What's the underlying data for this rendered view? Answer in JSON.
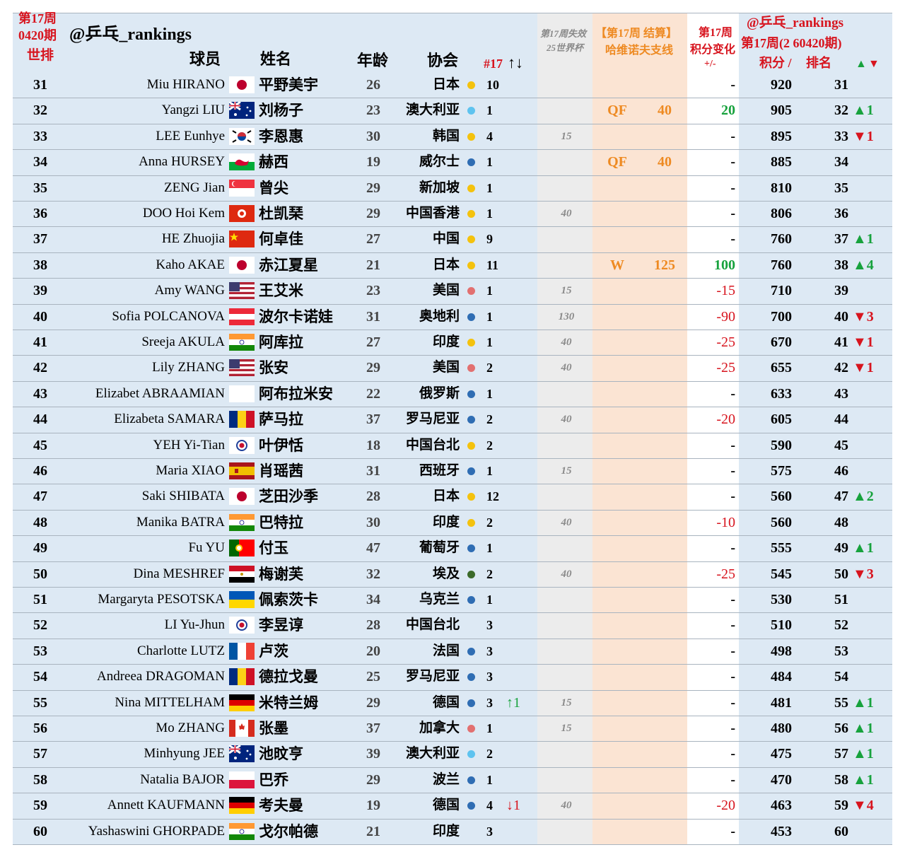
{
  "header": {
    "rank_title": [
      "第17周",
      "0420期",
      "世排"
    ],
    "brand": "@乒乓_rankings",
    "player": "球员",
    "name": "姓名",
    "age": "年龄",
    "assoc": "协会",
    "count": "#17",
    "count_arrows": "↑↓",
    "lost": [
      "第17周失效",
      "25世界杯"
    ],
    "result": [
      "【第17周 结算】",
      "哈维诺夫支线"
    ],
    "change": [
      "第17周",
      "积分变化",
      "+/-"
    ],
    "brand2": "@乒乓_rankings",
    "week": "第17周(2 60420期)",
    "points": "积分 /",
    "new_rank": "排名",
    "up": "▲",
    "down": "▼"
  },
  "colors": {
    "up": "#17a23d",
    "down": "#d7141e"
  },
  "rows": [
    {
      "rank": 31,
      "en": "Miu HIRANO",
      "cn": "平野美宇",
      "age": 26,
      "assoc": "日本",
      "dot": "#f4c20d",
      "count": 10,
      "change": "-",
      "points": 920,
      "new_rank": 31
    },
    {
      "rank": 32,
      "en": "Yangzi LIU",
      "cn": "刘杨子",
      "age": 23,
      "assoc": "澳大利亚",
      "dot": "#5ec3ef",
      "count": 1,
      "result": "QF",
      "result_pts": 40,
      "change": 20,
      "points": 905,
      "new_rank": 32,
      "rank_change": "▲1",
      "rank_change_color": "#17a23d"
    },
    {
      "rank": 33,
      "en": "LEE Eunhye",
      "cn": "李恩惠",
      "age": 30,
      "assoc": "韩国",
      "dot": "#f4c20d",
      "count": 4,
      "lost": 15,
      "change": "-",
      "points": 895,
      "new_rank": 33,
      "rank_change": "▼1",
      "rank_change_color": "#d7141e"
    },
    {
      "rank": 34,
      "en": "Anna HURSEY",
      "cn": "赫西",
      "age": 19,
      "assoc": "威尔士",
      "dot": "#2f6db3",
      "count": 1,
      "result": "QF",
      "result_pts": 40,
      "change": "-",
      "points": 885,
      "new_rank": 34
    },
    {
      "rank": 35,
      "en": "ZENG Jian",
      "cn": "曾尖",
      "age": 29,
      "assoc": "新加坡",
      "dot": "#f4c20d",
      "count": 1,
      "change": "-",
      "points": 810,
      "new_rank": 35
    },
    {
      "rank": 36,
      "en": "DOO Hoi Kem",
      "cn": "杜凯琹",
      "age": 29,
      "assoc": "中国香港",
      "dot": "#f4c20d",
      "count": 1,
      "lost": 40,
      "change": "-",
      "points": 806,
      "new_rank": 36
    },
    {
      "rank": 37,
      "en": "HE Zhuojia",
      "cn": "何卓佳",
      "age": 27,
      "assoc": "中国",
      "dot": "#f4c20d",
      "count": 9,
      "change": "-",
      "points": 760,
      "new_rank": 37,
      "rank_change": "▲1",
      "rank_change_color": "#17a23d"
    },
    {
      "rank": 38,
      "en": "Kaho AKAE",
      "cn": "赤江夏星",
      "age": 21,
      "assoc": "日本",
      "dot": "#f4c20d",
      "count": 11,
      "result": "W",
      "result_pts": 125,
      "change": 100,
      "points": 760,
      "new_rank": 38,
      "rank_change": "▲4",
      "rank_change_color": "#17a23d"
    },
    {
      "rank": 39,
      "en": "Amy WANG",
      "cn": "王艾米",
      "age": 23,
      "assoc": "美国",
      "dot": "#e27070",
      "count": 1,
      "lost": 15,
      "change": -15,
      "points": 710,
      "new_rank": 39
    },
    {
      "rank": 40,
      "en": "Sofia POLCANOVA",
      "cn": "波尔卡诺娃",
      "age": 31,
      "assoc": "奥地利",
      "dot": "#2f6db3",
      "count": 1,
      "lost": 130,
      "change": -90,
      "points": 700,
      "new_rank": 40,
      "rank_change": "▼3",
      "rank_change_color": "#d7141e"
    },
    {
      "rank": 41,
      "en": "Sreeja AKULA",
      "cn": "阿库拉",
      "age": 27,
      "assoc": "印度",
      "dot": "#f4c20d",
      "count": 1,
      "lost": 40,
      "change": -25,
      "points": 670,
      "new_rank": 41,
      "rank_change": "▼1",
      "rank_change_color": "#d7141e"
    },
    {
      "rank": 42,
      "en": "Lily ZHANG",
      "cn": "张安",
      "age": 29,
      "assoc": "美国",
      "dot": "#e27070",
      "count": 2,
      "lost": 40,
      "change": -25,
      "points": 655,
      "new_rank": 42,
      "rank_change": "▼1",
      "rank_change_color": "#d7141e"
    },
    {
      "rank": 43,
      "en": "Elizabet ABRAAMIAN",
      "cn": "阿布拉米安",
      "age": 22,
      "assoc": "俄罗斯",
      "dot": "#2f6db3",
      "count": 1,
      "change": "-",
      "points": 633,
      "new_rank": 43
    },
    {
      "rank": 44,
      "en": "Elizabeta SAMARA",
      "cn": "萨马拉",
      "age": 37,
      "assoc": "罗马尼亚",
      "dot": "#2f6db3",
      "count": 2,
      "lost": 40,
      "change": -20,
      "points": 605,
      "new_rank": 44
    },
    {
      "rank": 45,
      "en": "YEH Yi-Tian",
      "cn": "叶伊恬",
      "age": 18,
      "assoc": "中国台北",
      "dot": "#f4c20d",
      "count": 2,
      "change": "-",
      "points": 590,
      "new_rank": 45
    },
    {
      "rank": 46,
      "en": "Maria XIAO",
      "cn": "肖瑶茜",
      "age": 31,
      "assoc": "西班牙",
      "dot": "#2f6db3",
      "count": 1,
      "lost": 15,
      "change": "-",
      "points": 575,
      "new_rank": 46
    },
    {
      "rank": 47,
      "en": "Saki SHIBATA",
      "cn": "芝田沙季",
      "age": 28,
      "assoc": "日本",
      "dot": "#f4c20d",
      "count": 12,
      "change": "-",
      "points": 560,
      "new_rank": 47,
      "rank_change": "▲2",
      "rank_change_color": "#17a23d"
    },
    {
      "rank": 48,
      "en": "Manika BATRA",
      "cn": "巴特拉",
      "age": 30,
      "assoc": "印度",
      "dot": "#f4c20d",
      "count": 2,
      "lost": 40,
      "change": -10,
      "points": 560,
      "new_rank": 48
    },
    {
      "rank": 49,
      "en": "Fu YU",
      "cn": "付玉",
      "age": 47,
      "assoc": "葡萄牙",
      "dot": "#2f6db3",
      "count": 1,
      "change": "-",
      "points": 555,
      "new_rank": 49,
      "rank_change": "▲1",
      "rank_change_color": "#17a23d"
    },
    {
      "rank": 50,
      "en": "Dina MESHREF",
      "cn": "梅谢芙",
      "age": 32,
      "assoc": "埃及",
      "dot": "#3b6a2a",
      "count": 2,
      "lost": 40,
      "change": -25,
      "points": 545,
      "new_rank": 50,
      "rank_change": "▼3",
      "rank_change_color": "#d7141e"
    },
    {
      "rank": 51,
      "en": "Margaryta PESOTSKA",
      "cn": "佩索茨卡",
      "age": 34,
      "assoc": "乌克兰",
      "dot": "#2f6db3",
      "count": 1,
      "change": "-",
      "points": 530,
      "new_rank": 51
    },
    {
      "rank": 52,
      "en": "LI Yu-Jhun",
      "cn": "李昱谆",
      "age": 28,
      "assoc": "中国台北",
      "count": 3,
      "change": "-",
      "points": 510,
      "new_rank": 52
    },
    {
      "rank": 53,
      "en": "Charlotte LUTZ",
      "cn": "卢茨",
      "age": 20,
      "assoc": "法国",
      "dot": "#2f6db3",
      "count": 3,
      "change": "-",
      "points": 498,
      "new_rank": 53
    },
    {
      "rank": 54,
      "en": "Andreea DRAGOMAN",
      "cn": "德拉戈曼",
      "age": 25,
      "assoc": "罗马尼亚",
      "dot": "#2f6db3",
      "count": 3,
      "change": "-",
      "points": 484,
      "new_rank": 54
    },
    {
      "rank": 55,
      "en": "Nina MITTELHAM",
      "cn": "米特兰姆",
      "age": 29,
      "assoc": "德国",
      "dot": "#2f6db3",
      "count": 3,
      "count_change": "↑1",
      "count_change_color": "#17a23d",
      "lost": 15,
      "change": "-",
      "points": 481,
      "new_rank": 55,
      "rank_change": "▲1",
      "rank_change_color": "#17a23d"
    },
    {
      "rank": 56,
      "en": "Mo ZHANG",
      "cn": "张墨",
      "age": 37,
      "assoc": "加拿大",
      "dot": "#e27070",
      "count": 1,
      "lost": 15,
      "change": "-",
      "points": 480,
      "new_rank": 56,
      "rank_change": "▲1",
      "rank_change_color": "#17a23d"
    },
    {
      "rank": 57,
      "en": "Minhyung JEE",
      "cn": "池旼亨",
      "age": 39,
      "assoc": "澳大利亚",
      "dot": "#5ec3ef",
      "count": 2,
      "change": "-",
      "points": 475,
      "new_rank": 57,
      "rank_change": "▲1",
      "rank_change_color": "#17a23d"
    },
    {
      "rank": 58,
      "en": "Natalia BAJOR",
      "cn": "巴乔",
      "age": 29,
      "assoc": "波兰",
      "dot": "#2f6db3",
      "count": 1,
      "change": "-",
      "points": 470,
      "new_rank": 58,
      "rank_change": "▲1",
      "rank_change_color": "#17a23d"
    },
    {
      "rank": 59,
      "en": "Annett KAUFMANN",
      "cn": "考夫曼",
      "age": 19,
      "assoc": "德国",
      "dot": "#2f6db3",
      "count": 4,
      "count_change": "↓1",
      "count_change_color": "#d7141e",
      "lost": 40,
      "change": -20,
      "points": 463,
      "new_rank": 59,
      "rank_change": "▼4",
      "rank_change_color": "#d7141e"
    },
    {
      "rank": 60,
      "en": "Yashaswini GHORPADE",
      "cn": "戈尔帕德",
      "age": 21,
      "assoc": "印度",
      "count": 3,
      "change": "-",
      "points": 453,
      "new_rank": 60
    }
  ]
}
